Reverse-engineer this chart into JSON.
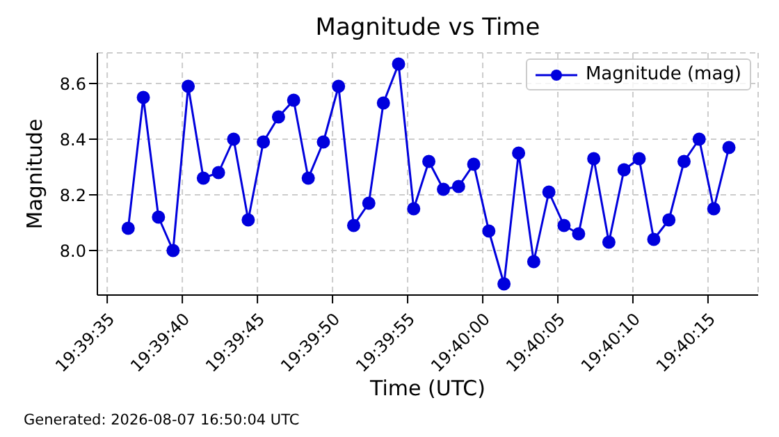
{
  "chart_data": {
    "type": "line",
    "title": "Magnitude vs Time",
    "xlabel": "Time (UTC)",
    "ylabel": "Magnitude",
    "annotations": [
      "Generated: 2026-08-07 16:50:04 UTC"
    ],
    "x": [
      19.66011,
      19.66039,
      19.66067,
      19.66094,
      19.66122,
      19.6615,
      19.66178,
      19.66206,
      19.66233,
      19.66261,
      19.66289,
      19.66317,
      19.66344,
      19.66372,
      19.664,
      19.66428,
      19.66456,
      19.66483,
      19.66511,
      19.66539,
      19.66567,
      19.66594,
      19.66622,
      19.6665,
      19.66678,
      19.66706,
      19.66733,
      19.66761,
      19.66789,
      19.66817,
      19.66844,
      19.66872,
      19.669,
      19.66928,
      19.66956,
      19.66983,
      19.67011,
      19.67039,
      19.67067,
      19.67094,
      19.67122
    ],
    "series": [
      {
        "name": "Magnitude (mag)",
        "color": "#0000dd",
        "values": [
          8.08,
          8.55,
          8.12,
          8.0,
          8.59,
          8.26,
          8.28,
          8.4,
          8.11,
          8.39,
          8.48,
          8.54,
          8.26,
          8.39,
          8.59,
          8.09,
          8.17,
          8.53,
          8.67,
          8.15,
          8.32,
          8.22,
          8.23,
          8.31,
          8.07,
          7.88,
          8.35,
          7.96,
          8.21,
          8.09,
          8.06,
          8.33,
          8.03,
          8.29,
          8.33,
          8.04,
          8.11,
          8.32,
          8.4,
          8.15,
          8.37
        ]
      }
    ],
    "xlim": [
      19.65954,
      19.67176
    ],
    "xticks": [
      {
        "value": 19.659722,
        "label": "19:39:35"
      },
      {
        "value": 19.661111,
        "label": "19:39:40"
      },
      {
        "value": 19.6625,
        "label": "19:39:45"
      },
      {
        "value": 19.663889,
        "label": "19:39:50"
      },
      {
        "value": 19.665278,
        "label": "19:39:55"
      },
      {
        "value": 19.666667,
        "label": "19:40:00"
      },
      {
        "value": 19.668056,
        "label": "19:40:05"
      },
      {
        "value": 19.669444,
        "label": "19:40:10"
      },
      {
        "value": 19.670833,
        "label": "19:40:15"
      }
    ],
    "ylim": [
      7.84,
      8.71
    ],
    "yticks": [
      {
        "value": 8.0,
        "label": "8.0"
      },
      {
        "value": 8.2,
        "label": "8.2"
      },
      {
        "value": 8.4,
        "label": "8.4"
      },
      {
        "value": 8.6,
        "label": "8.6"
      }
    ],
    "grid": true,
    "legend": "top right",
    "marker": "circle",
    "line_style": "solid"
  }
}
